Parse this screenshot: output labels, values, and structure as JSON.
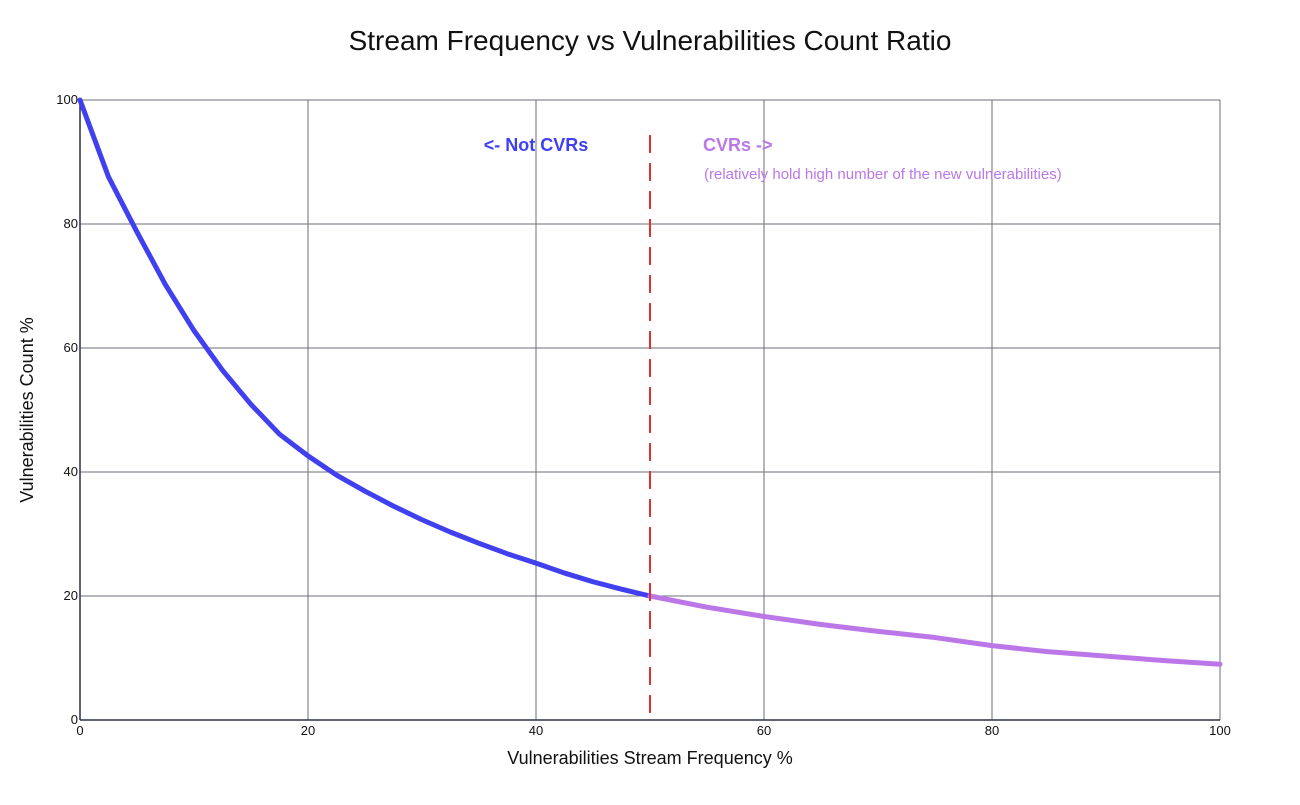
{
  "chart_data": {
    "type": "line",
    "title": "Stream Frequency vs Vulnerabilities Count Ratio",
    "xlabel": "Vulnerabilities Stream Frequency %",
    "ylabel": "Vulnerabilities Count %",
    "xlim": [
      0,
      100
    ],
    "ylim": [
      0,
      100
    ],
    "x_ticks": [
      0,
      20,
      40,
      60,
      80,
      100
    ],
    "y_ticks": [
      0,
      20,
      40,
      60,
      80,
      100
    ],
    "grid": true,
    "threshold_x": 50,
    "series": [
      {
        "color": "#4040ee",
        "x": [
          0,
          2.5,
          5,
          7.5,
          10,
          12.5,
          15,
          17.5,
          20,
          22.5,
          25,
          27.5,
          30,
          32.5,
          35,
          37.5,
          40,
          42.5,
          45,
          47.5,
          50
        ],
        "y": [
          100,
          87.6,
          78.7,
          70.2,
          62.8,
          56.4,
          50.9,
          46.1,
          42.6,
          39.5,
          36.9,
          34.5,
          32.3,
          30.3,
          28.5,
          26.8,
          25.3,
          23.7,
          22.3,
          21.1,
          20.0
        ]
      },
      {
        "color": "#bb77e8",
        "x": [
          50,
          55,
          60,
          65,
          70,
          75,
          80,
          85,
          90,
          95,
          100
        ],
        "y": [
          20.0,
          18.2,
          16.7,
          15.4,
          14.3,
          13.3,
          12.0,
          11.0,
          10.3,
          9.6,
          9.0
        ]
      }
    ],
    "annotations": {
      "left_label": "<- Not CVRs",
      "right_label": "CVRs ->",
      "right_sublabel": "(relatively hold high number of the new vulnerabilities)"
    },
    "colors": {
      "left_series": "#4040ee",
      "right_series": "#bb77e8",
      "threshold_line": "#e03030",
      "grid": "#6b6f7a",
      "axis": "#2a3040",
      "text": "#111111"
    }
  }
}
